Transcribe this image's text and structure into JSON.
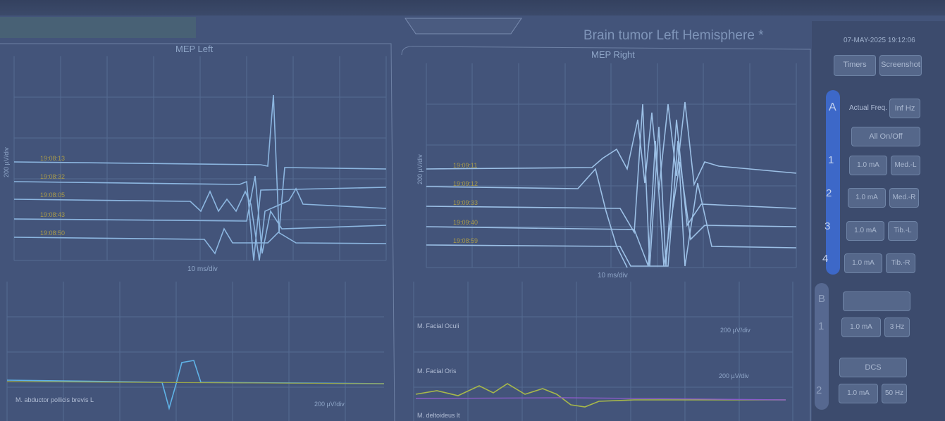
{
  "header": {
    "title": "Brain tumor Left Hemisphere *",
    "datetime": "07-MAY-2025 19:12:06",
    "buttons": [
      "Timers",
      "Screenshot"
    ]
  },
  "panels": [
    {
      "title": "MEP Left",
      "y_scale": "200 µV/div",
      "x_scale": "10 ms/div",
      "timestamps": [
        "19:08:13",
        "19:08:32",
        "19:08:05",
        "19:08:43",
        "19:08:50"
      ]
    },
    {
      "title": "MEP Right",
      "y_scale": "200 µV/div",
      "x_scale": "10 ms/div",
      "timestamps": [
        "19:09:11",
        "19:09:12",
        "19:09:33",
        "19:09:40",
        "19:08:59"
      ]
    }
  ],
  "emg": {
    "left": [
      {
        "label": "M. abductor pollicis brevis L",
        "scale": "200 µV/div"
      }
    ],
    "right": [
      {
        "label": "M. Facial Oculi",
        "scale": "200 µV/div"
      },
      {
        "label": "M. Facial Oris",
        "scale": "200 µV/div"
      },
      {
        "label": "M. deltoideus lt"
      }
    ]
  },
  "sidebar": {
    "group_a": {
      "label": "A",
      "freq_label": "Actual Freq.",
      "freq_value": "Inf Hz",
      "all_toggle": "All On/Off",
      "channels": [
        {
          "number": "1",
          "current": "1.0 mA",
          "muscle": "Med.-L"
        },
        {
          "number": "2",
          "current": "1.0 mA",
          "muscle": "Med.-R"
        },
        {
          "number": "3",
          "current": "1.0 mA",
          "muscle": "Tib.-L"
        },
        {
          "number": "4",
          "current": "1.0 mA",
          "muscle": "Tib.-R"
        }
      ]
    },
    "group_b": {
      "label": "B",
      "dcs": "DCS",
      "channels": [
        {
          "number": "1",
          "current": "1.0 mA",
          "freq": "3 Hz"
        },
        {
          "number": "2",
          "current": "1.0 mA",
          "freq": "50 Hz"
        }
      ]
    }
  }
}
